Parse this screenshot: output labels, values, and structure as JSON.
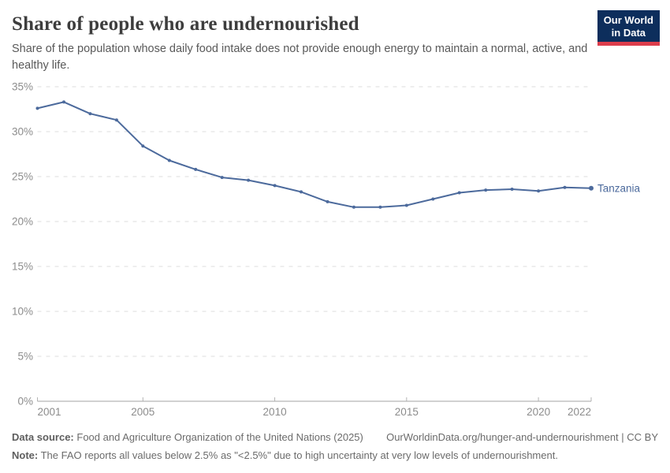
{
  "header": {
    "title": "Share of people who are undernourished",
    "subtitle": "Share of the population whose daily food intake does not provide enough energy to maintain a normal, active, and healthy life.",
    "logo": {
      "line1": "Our World",
      "line2": "in Data"
    }
  },
  "chart_data": {
    "type": "line",
    "title": "Share of people who are undernourished",
    "unit": "%",
    "x": [
      2001,
      2002,
      2003,
      2004,
      2005,
      2006,
      2007,
      2008,
      2009,
      2010,
      2011,
      2012,
      2013,
      2014,
      2015,
      2016,
      2017,
      2018,
      2019,
      2020,
      2021,
      2022
    ],
    "series": [
      {
        "name": "Tanzania",
        "color": "#4c6a9c",
        "values": [
          32.6,
          33.3,
          32.0,
          31.3,
          28.4,
          26.8,
          25.8,
          24.9,
          24.6,
          24.0,
          23.3,
          22.2,
          21.6,
          21.6,
          21.8,
          22.5,
          23.2,
          23.5,
          23.6,
          23.4,
          23.8,
          23.7
        ]
      }
    ],
    "ylim": [
      0,
      35
    ],
    "yticks": [
      0,
      5,
      10,
      15,
      20,
      25,
      30,
      35
    ],
    "xticks": [
      2001,
      2005,
      2010,
      2015,
      2020,
      2022
    ],
    "grid": "horizontal-dashed",
    "legend_position": "end-of-line-label"
  },
  "footer": {
    "data_source_label": "Data source:",
    "data_source": "Food and Agriculture Organization of the United Nations (2025)",
    "attribution": "OurWorldinData.org/hunger-and-undernourishment | CC BY",
    "note_label": "Note:",
    "note": "The FAO reports all values below 2.5% as \"<2.5%\" due to high uncertainty at very low levels of undernourishment."
  },
  "colors": {
    "line": "#4c6a9c",
    "logo_bg": "#0d2e5c",
    "logo_accent": "#dc3d4b",
    "grid": "#dedede",
    "axis": "#a3a3a3",
    "tick": "#b3b3b3",
    "tick_label": "#8c8c8c"
  }
}
